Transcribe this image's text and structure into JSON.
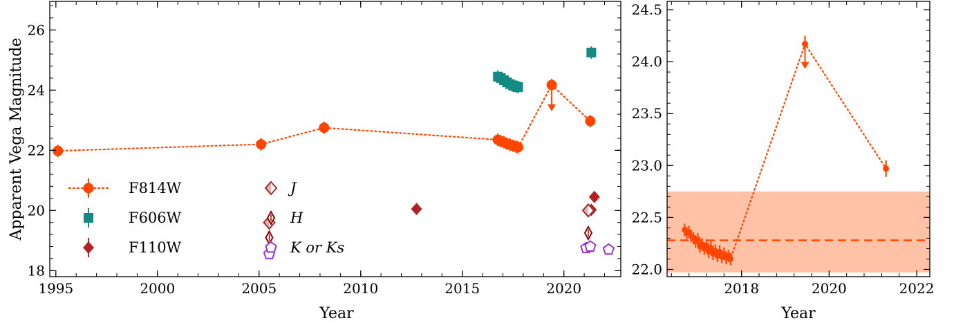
{
  "colors": {
    "F814W": "#ff4500",
    "F606W": "#138a84",
    "F110W": "#b22222",
    "J": "#a52a2a",
    "H": "#8b0000",
    "K": "#9932cc",
    "band": "#ffc2a6"
  },
  "chart_data": [
    {
      "type": "scatter",
      "xlabel": "Year",
      "ylabel": "Apparent Vega Magnitude",
      "xlim": [
        1994.7,
        2022.8
      ],
      "ylim": [
        26.95,
        17.8
      ],
      "y_inverted": true,
      "xticks": [
        1995,
        2000,
        2005,
        2010,
        2015,
        2020
      ],
      "yticks": [
        18,
        20,
        22,
        24,
        26
      ],
      "legend": {
        "placement": "lower-left",
        "entries": [
          {
            "key": "F814W",
            "label": "F814W"
          },
          {
            "key": "F606W",
            "label": "F606W"
          },
          {
            "key": "F110W",
            "label": "F110W"
          },
          {
            "key": "J",
            "label": "J"
          },
          {
            "key": "H",
            "label": "H"
          },
          {
            "key": "K",
            "label": "K or Ks"
          }
        ]
      },
      "series": [
        {
          "key": "F814W",
          "marker": "circle",
          "line": "dotted",
          "points": [
            {
              "x": 1995.1,
              "y": 21.98
            },
            {
              "x": 2005.1,
              "y": 22.2
            },
            {
              "x": 2008.2,
              "y": 22.75
            },
            {
              "x": 2016.75,
              "y": 22.35
            },
            {
              "x": 2016.9,
              "y": 22.3
            },
            {
              "x": 2017.05,
              "y": 22.27
            },
            {
              "x": 2017.2,
              "y": 22.22
            },
            {
              "x": 2017.35,
              "y": 22.19
            },
            {
              "x": 2017.5,
              "y": 22.15
            },
            {
              "x": 2017.65,
              "y": 22.12
            },
            {
              "x": 2017.75,
              "y": 22.1
            },
            {
              "x": 2019.4,
              "y": 24.17,
              "upper_limit": true
            },
            {
              "x": 2021.3,
              "y": 22.97
            }
          ]
        },
        {
          "key": "F606W",
          "marker": "square",
          "points": [
            {
              "x": 2016.75,
              "y": 24.45
            },
            {
              "x": 2016.9,
              "y": 24.4
            },
            {
              "x": 2017.05,
              "y": 24.33
            },
            {
              "x": 2017.2,
              "y": 24.26
            },
            {
              "x": 2017.35,
              "y": 24.2
            },
            {
              "x": 2017.5,
              "y": 24.15
            },
            {
              "x": 2017.65,
              "y": 24.12
            },
            {
              "x": 2017.75,
              "y": 24.1
            },
            {
              "x": 2021.35,
              "y": 25.25
            }
          ]
        },
        {
          "key": "F110W",
          "marker": "diamond-filled",
          "points": [
            {
              "x": 2012.75,
              "y": 20.05
            },
            {
              "x": 2021.35,
              "y": 20.02
            },
            {
              "x": 2021.5,
              "y": 20.45
            }
          ]
        },
        {
          "key": "J",
          "marker": "diamond-half",
          "points": [
            {
              "x": 2005.5,
              "y": 19.6
            },
            {
              "x": 2021.2,
              "y": 20.0
            }
          ]
        },
        {
          "key": "H",
          "marker": "diamond-thin",
          "points": [
            {
              "x": 2005.5,
              "y": 19.1
            },
            {
              "x": 2021.2,
              "y": 19.25
            }
          ]
        },
        {
          "key": "K",
          "marker": "pentagon",
          "points": [
            {
              "x": 2005.5,
              "y": 18.55
            },
            {
              "x": 2021.1,
              "y": 18.75
            },
            {
              "x": 2021.3,
              "y": 18.8
            },
            {
              "x": 2022.2,
              "y": 18.7
            }
          ]
        }
      ]
    },
    {
      "type": "scatter",
      "xlabel": "Year",
      "ylabel": "",
      "xlim": [
        2016.3,
        2022.3
      ],
      "ylim": [
        24.58,
        21.93
      ],
      "y_inverted": true,
      "xticks": [
        2018,
        2020,
        2022
      ],
      "yticks": [
        22.0,
        22.5,
        23.0,
        23.5,
        24.0,
        24.5
      ],
      "mean_line": 22.28,
      "band": [
        21.97,
        22.75
      ],
      "series": [
        {
          "key": "F814W",
          "marker": "circle",
          "line": "dotted",
          "points": [
            {
              "x": 2016.7,
              "y": 22.38
            },
            {
              "x": 2016.75,
              "y": 22.35
            },
            {
              "x": 2016.8,
              "y": 22.36
            },
            {
              "x": 2016.85,
              "y": 22.32
            },
            {
              "x": 2016.9,
              "y": 22.3
            },
            {
              "x": 2016.95,
              "y": 22.27
            },
            {
              "x": 2017.0,
              "y": 22.29
            },
            {
              "x": 2017.05,
              "y": 22.22
            },
            {
              "x": 2017.1,
              "y": 22.24
            },
            {
              "x": 2017.15,
              "y": 22.2
            },
            {
              "x": 2017.2,
              "y": 22.23
            },
            {
              "x": 2017.25,
              "y": 22.17
            },
            {
              "x": 2017.3,
              "y": 22.21
            },
            {
              "x": 2017.35,
              "y": 22.15
            },
            {
              "x": 2017.4,
              "y": 22.18
            },
            {
              "x": 2017.45,
              "y": 22.13
            },
            {
              "x": 2017.5,
              "y": 22.17
            },
            {
              "x": 2017.55,
              "y": 22.12
            },
            {
              "x": 2017.6,
              "y": 22.15
            },
            {
              "x": 2017.65,
              "y": 22.11
            },
            {
              "x": 2017.7,
              "y": 22.13
            },
            {
              "x": 2017.75,
              "y": 22.1
            },
            {
              "x": 2019.45,
              "y": 24.17,
              "upper_limit": true
            },
            {
              "x": 2021.3,
              "y": 22.97
            }
          ]
        }
      ]
    }
  ]
}
